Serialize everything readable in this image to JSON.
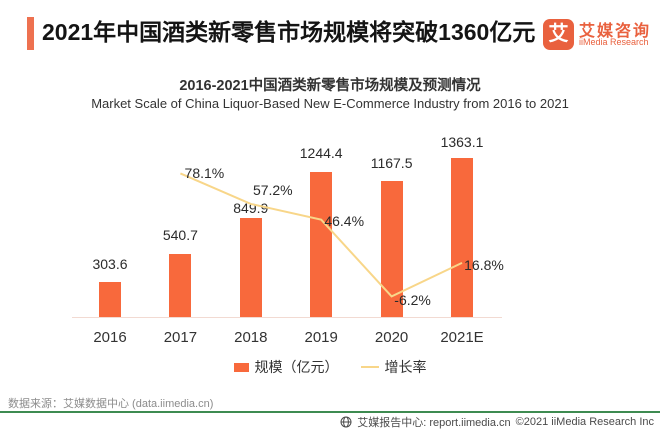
{
  "header": {
    "title": "2021年中国酒类新零售市场规模将突破1360亿元"
  },
  "logo": {
    "glyph": "艾",
    "name_cn": "艾媒咨询",
    "name_en": "iiMedia Research"
  },
  "chart": {
    "title": "2016-2021中国酒类新零售市场规模及预测情况",
    "subtitle": "Market Scale of China  Liquor-Based New E-Commerce Industry from 2016 to 2021"
  },
  "chart_data": {
    "type": "bar",
    "categories": [
      "2016",
      "2017",
      "2018",
      "2019",
      "2020",
      "2021E"
    ],
    "series": [
      {
        "name": "规模（亿元）",
        "type": "bar",
        "color": "#F8693C",
        "values": [
          303.6,
          540.7,
          849.9,
          1244.4,
          1167.5,
          1363.1
        ]
      },
      {
        "name": "增长率",
        "type": "line",
        "color": "#F8D689",
        "unit": "%",
        "values": [
          null,
          78.1,
          57.2,
          46.4,
          -6.2,
          16.8
        ]
      }
    ],
    "value_labels": true,
    "legend_position": "bottom",
    "grid": false,
    "ylim": [
      0,
      1500
    ]
  },
  "source": {
    "text": "数据来源：艾媒数据中心 (data.iimedia.cn)"
  },
  "footer": {
    "report_center": "艾媒报告中心: report.iimedia.cn",
    "copyright": "©2021  iiMedia Research Inc"
  },
  "colors": {
    "bar": "#F8693C",
    "line": "#F8D689",
    "accent": "#EE7150",
    "logo": "#E9613E",
    "footer_rule": "#3E8B51"
  }
}
